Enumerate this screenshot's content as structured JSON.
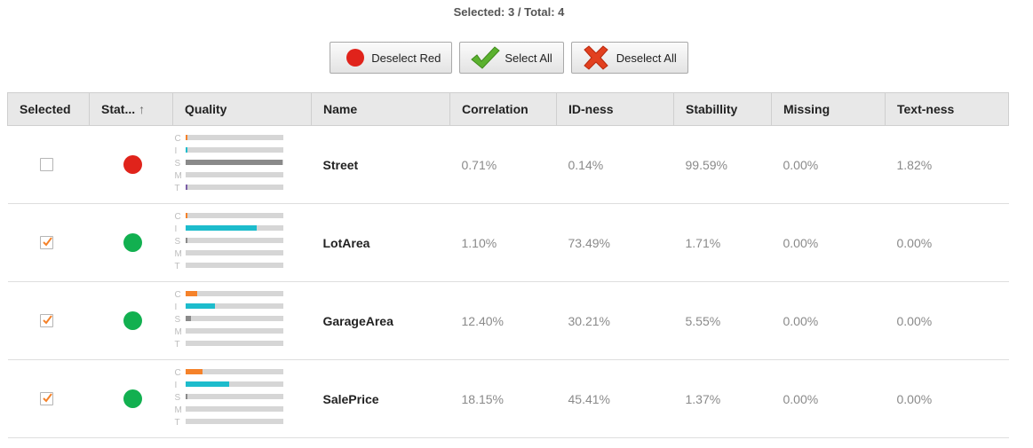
{
  "summary": {
    "selected_label": "Selected:",
    "selected": "3",
    "sep": "/",
    "total_label": "Total:",
    "total": "4"
  },
  "buttons": {
    "deselect_red": "Deselect Red",
    "select_all": "Select All",
    "deselect_all": "Deselect All"
  },
  "columns": [
    "Selected",
    "Stat...",
    "Quality",
    "Name",
    "Correlation",
    "ID-ness",
    "Stabillity",
    "Missing",
    "Text-ness"
  ],
  "sort_arrow": "↑",
  "quality_letters": [
    "C",
    "I",
    "S",
    "M",
    "T"
  ],
  "colors": {
    "red": "#e0231b",
    "green": "#12b050",
    "correlation": "#f5822a",
    "idness": "#1dbccc",
    "stability": "#8a8a8a",
    "missing": "#d6d6d6",
    "textness": "#7b5ea7"
  },
  "rows": [
    {
      "selected": false,
      "status": "red",
      "name": "Street",
      "correlation": "0.71%",
      "idness": "0.14%",
      "stability": "99.59%",
      "missing": "0.00%",
      "textness": "1.82%",
      "q": [
        0.0071,
        0.0014,
        0.9959,
        0.0,
        0.0182
      ]
    },
    {
      "selected": true,
      "status": "green",
      "name": "LotArea",
      "correlation": "1.10%",
      "idness": "73.49%",
      "stability": "1.71%",
      "missing": "0.00%",
      "textness": "0.00%",
      "q": [
        0.011,
        0.7349,
        0.0171,
        0.0,
        0.0
      ]
    },
    {
      "selected": true,
      "status": "green",
      "name": "GarageArea",
      "correlation": "12.40%",
      "idness": "30.21%",
      "stability": "5.55%",
      "missing": "0.00%",
      "textness": "0.00%",
      "q": [
        0.124,
        0.3021,
        0.0555,
        0.0,
        0.0
      ]
    },
    {
      "selected": true,
      "status": "green",
      "name": "SalePrice",
      "correlation": "18.15%",
      "idness": "45.41%",
      "stability": "1.37%",
      "missing": "0.00%",
      "textness": "0.00%",
      "q": [
        0.1815,
        0.4541,
        0.0137,
        0.0,
        0.0
      ]
    }
  ]
}
